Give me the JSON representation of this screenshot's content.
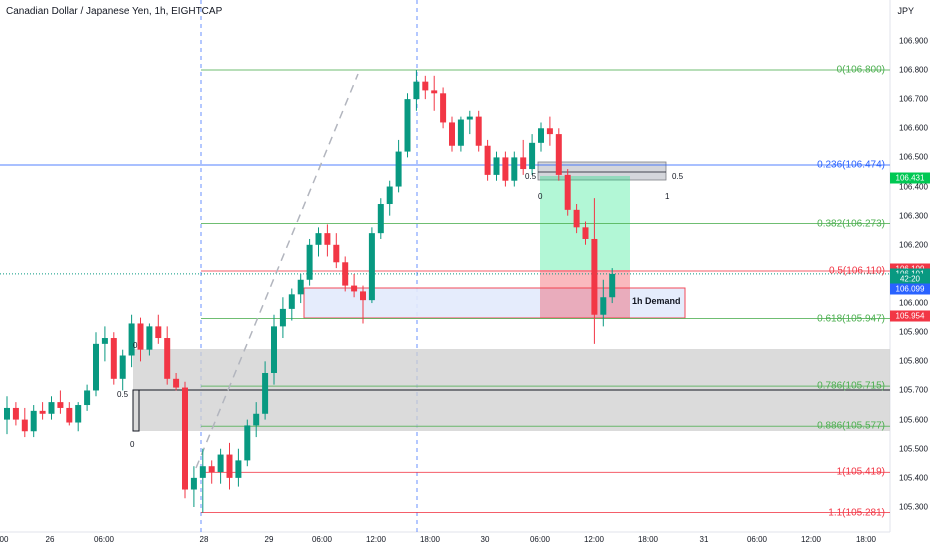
{
  "header": {
    "title": "Canadian Dollar / Japanese Yen, 1h, EIGHTCAP",
    "unit": "JPY"
  },
  "price_axis": [
    "106.900",
    "106.800",
    "106.700",
    "106.600",
    "106.500",
    "106.400",
    "106.300",
    "106.200",
    "106.000",
    "105.900",
    "105.800",
    "105.700",
    "105.600",
    "105.500",
    "105.400",
    "105.300"
  ],
  "time_axis": [
    "00",
    "26",
    "06:00",
    "28",
    "29",
    "06:00",
    "12:00",
    "18:00",
    "30",
    "06:00",
    "12:00",
    "18:00",
    "31",
    "06:00",
    "12:00",
    "18:00"
  ],
  "fib_levels": [
    {
      "label": "0(106.800)",
      "price": 106.8,
      "color": "#4caf50"
    },
    {
      "label": "0.236(106.474)",
      "price": 106.474,
      "color": "#2962ff"
    },
    {
      "label": "0.382(106.273)",
      "price": 106.273,
      "color": "#4caf50"
    },
    {
      "label": "0.5(106.110)",
      "price": 106.11,
      "color": "#f23645"
    },
    {
      "label": "0.618(105.947)",
      "price": 105.947,
      "color": "#4caf50"
    },
    {
      "label": "0.786(105.715)",
      "price": 105.715,
      "color": "#4caf50"
    },
    {
      "label": "0.886(105.577)",
      "price": 105.577,
      "color": "#4caf50"
    },
    {
      "label": "1(105.419)",
      "price": 105.419,
      "color": "#f23645"
    },
    {
      "label": "1.1(105.281)",
      "price": 105.281,
      "color": "#f23645"
    }
  ],
  "price_tags": [
    {
      "text": "106.431",
      "price": 106.431,
      "bg": "#00c853"
    },
    {
      "text": "106.109",
      "price": 106.118,
      "bg": "#f23645"
    },
    {
      "text": "106.101",
      "price": 106.1,
      "bg": "#089981"
    },
    {
      "text": "42:20",
      "price": 106.083,
      "bg": "#089981"
    },
    {
      "text": "106.099",
      "price": 106.05,
      "bg": "#2962ff"
    },
    {
      "text": "105.954",
      "price": 105.954,
      "bg": "#f23645"
    }
  ],
  "point_labels": [
    {
      "text": "0",
      "x": 133,
      "y": 341
    },
    {
      "text": "0.5",
      "x": 117,
      "y": 390
    },
    {
      "text": "0",
      "x": 130,
      "y": 440
    },
    {
      "text": "0.5",
      "x": 525,
      "y": 172
    },
    {
      "text": "0",
      "x": 538,
      "y": 192
    },
    {
      "text": "0.5",
      "x": 672,
      "y": 172
    },
    {
      "text": "1",
      "x": 665,
      "y": 192
    }
  ],
  "demand_label": "1h Demand",
  "colors": {
    "up": "#089981",
    "down": "#f23645",
    "bg": "#ffffff"
  },
  "chart_data": {
    "type": "candlestick",
    "title": "Canadian Dollar / Japanese Yen, 1h, EIGHTCAP",
    "ylim": [
      105.26,
      106.96
    ],
    "candles": [
      [
        105.6,
        105.68,
        105.55,
        105.64
      ],
      [
        105.64,
        105.66,
        105.58,
        105.6
      ],
      [
        105.6,
        105.64,
        105.54,
        105.56
      ],
      [
        105.56,
        105.65,
        105.54,
        105.63
      ],
      [
        105.63,
        105.66,
        105.6,
        105.62
      ],
      [
        105.62,
        105.68,
        105.6,
        105.66
      ],
      [
        105.66,
        105.7,
        105.62,
        105.64
      ],
      [
        105.64,
        105.66,
        105.58,
        105.59
      ],
      [
        105.59,
        105.66,
        105.56,
        105.65
      ],
      [
        105.65,
        105.72,
        105.63,
        105.7
      ],
      [
        105.7,
        105.9,
        105.68,
        105.86
      ],
      [
        105.86,
        105.92,
        105.8,
        105.88
      ],
      [
        105.88,
        105.9,
        105.72,
        105.74
      ],
      [
        105.74,
        105.84,
        105.7,
        105.82
      ],
      [
        105.82,
        105.96,
        105.78,
        105.93
      ],
      [
        105.93,
        105.95,
        105.8,
        105.84
      ],
      [
        105.84,
        105.93,
        105.82,
        105.92
      ],
      [
        105.92,
        105.96,
        105.86,
        105.88
      ],
      [
        105.88,
        105.92,
        105.72,
        105.74
      ],
      [
        105.74,
        105.76,
        105.7,
        105.71
      ],
      [
        105.71,
        105.73,
        105.33,
        105.36
      ],
      [
        105.36,
        105.44,
        105.3,
        105.4
      ],
      [
        105.4,
        105.5,
        105.28,
        105.44
      ],
      [
        105.44,
        105.46,
        105.38,
        105.42
      ],
      [
        105.42,
        105.5,
        105.38,
        105.48
      ],
      [
        105.48,
        105.52,
        105.36,
        105.4
      ],
      [
        105.4,
        105.5,
        105.37,
        105.46
      ],
      [
        105.46,
        105.6,
        105.44,
        105.58
      ],
      [
        105.58,
        105.66,
        105.54,
        105.62
      ],
      [
        105.62,
        105.8,
        105.6,
        105.76
      ],
      [
        105.76,
        105.96,
        105.72,
        105.92
      ],
      [
        105.92,
        106.02,
        105.88,
        105.98
      ],
      [
        105.98,
        106.05,
        105.94,
        106.03
      ],
      [
        106.03,
        106.1,
        106.0,
        106.08
      ],
      [
        106.08,
        106.22,
        106.06,
        106.2
      ],
      [
        106.2,
        106.26,
        106.16,
        106.24
      ],
      [
        106.24,
        106.27,
        106.16,
        106.2
      ],
      [
        106.2,
        106.24,
        106.12,
        106.14
      ],
      [
        106.14,
        106.16,
        106.04,
        106.06
      ],
      [
        106.06,
        106.1,
        106.02,
        106.04
      ],
      [
        106.04,
        106.06,
        105.93,
        106.01
      ],
      [
        106.01,
        106.26,
        106.0,
        106.24
      ],
      [
        106.24,
        106.36,
        106.22,
        106.34
      ],
      [
        106.34,
        106.42,
        106.3,
        106.4
      ],
      [
        106.4,
        106.56,
        106.38,
        106.52
      ],
      [
        106.52,
        106.72,
        106.5,
        106.7
      ],
      [
        106.7,
        106.8,
        106.66,
        106.76
      ],
      [
        106.76,
        106.78,
        106.7,
        106.73
      ],
      [
        106.73,
        106.78,
        106.66,
        106.72
      ],
      [
        106.72,
        106.74,
        106.6,
        106.62
      ],
      [
        106.62,
        106.64,
        106.52,
        106.54
      ],
      [
        106.54,
        106.64,
        106.52,
        106.63
      ],
      [
        106.63,
        106.66,
        106.58,
        106.64
      ],
      [
        106.64,
        106.66,
        106.52,
        106.54
      ],
      [
        106.54,
        106.56,
        106.42,
        106.44
      ],
      [
        106.44,
        106.52,
        106.42,
        106.5
      ],
      [
        106.5,
        106.52,
        106.4,
        106.42
      ],
      [
        106.42,
        106.52,
        106.4,
        106.5
      ],
      [
        106.5,
        106.56,
        106.44,
        106.46
      ],
      [
        106.46,
        106.58,
        106.44,
        106.55
      ],
      [
        106.55,
        106.62,
        106.52,
        106.6
      ],
      [
        106.6,
        106.64,
        106.54,
        106.58
      ],
      [
        106.58,
        106.6,
        106.42,
        106.44
      ],
      [
        106.44,
        106.46,
        106.3,
        106.32
      ],
      [
        106.32,
        106.34,
        106.24,
        106.26
      ],
      [
        106.26,
        106.28,
        106.2,
        106.22
      ],
      [
        106.22,
        106.36,
        105.86,
        105.96
      ],
      [
        105.96,
        106.08,
        105.92,
        106.02
      ],
      [
        106.02,
        106.12,
        106.0,
        106.1
      ]
    ]
  }
}
